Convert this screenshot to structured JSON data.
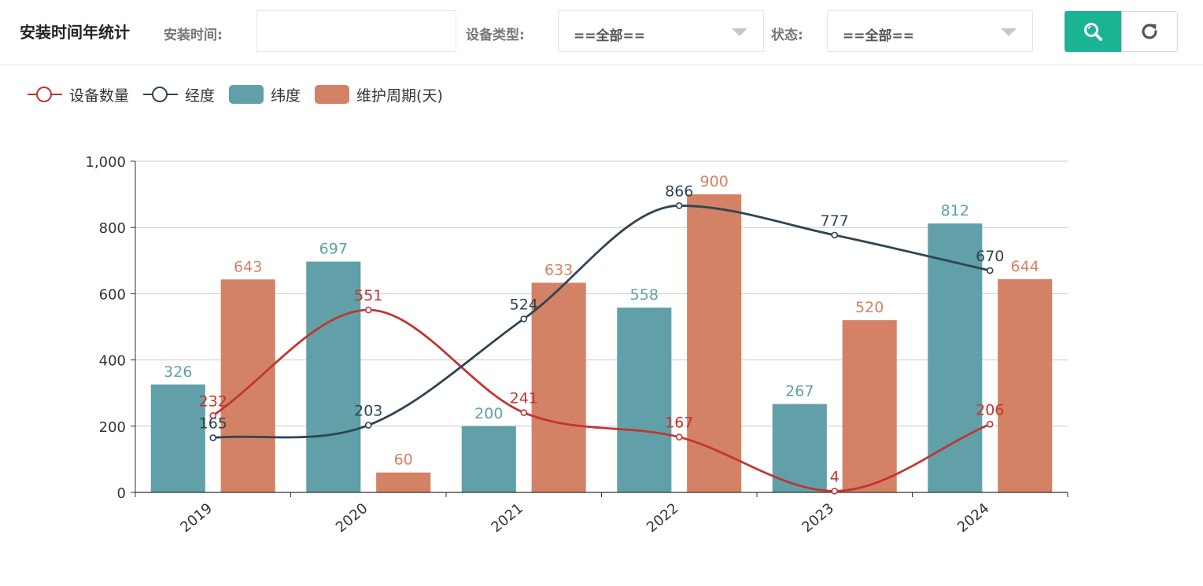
{
  "header": {
    "title": "安装时间年统计",
    "install_time_label": "安装时间:",
    "install_time_value": "",
    "device_type_label": "设备类型:",
    "device_type_value": "==全部==",
    "status_label": "状态:",
    "status_value": "==全部==",
    "search_icon": "search-icon",
    "refresh_icon": "refresh-icon"
  },
  "colors": {
    "accent": "#1ab394",
    "count": "#c23531",
    "lng": "#2f4554",
    "lat": "#61a0a8",
    "cycle": "#d48265"
  },
  "chart_data": {
    "type": "bar",
    "categories": [
      "2019",
      "2020",
      "2021",
      "2022",
      "2023",
      "2024"
    ],
    "ylim": [
      0,
      1000
    ],
    "yticks": [
      "0",
      "200",
      "400",
      "600",
      "800",
      "1,000"
    ],
    "grid": true,
    "legend_position": "top-left",
    "series": [
      {
        "name": "设备数量",
        "type": "line",
        "smooth": true,
        "color": "#c23531",
        "values": [
          232,
          551,
          241,
          167,
          4,
          206
        ]
      },
      {
        "name": "经度",
        "type": "line",
        "smooth": true,
        "color": "#2f4554",
        "values": [
          165,
          203,
          524,
          866,
          777,
          670
        ]
      },
      {
        "name": "纬度",
        "type": "bar",
        "color": "#61a0a8",
        "values": [
          326,
          697,
          200,
          558,
          267,
          812
        ]
      },
      {
        "name": "维护周期(天)",
        "type": "bar",
        "color": "#d48265",
        "values": [
          643,
          60,
          633,
          900,
          520,
          644
        ]
      }
    ]
  }
}
